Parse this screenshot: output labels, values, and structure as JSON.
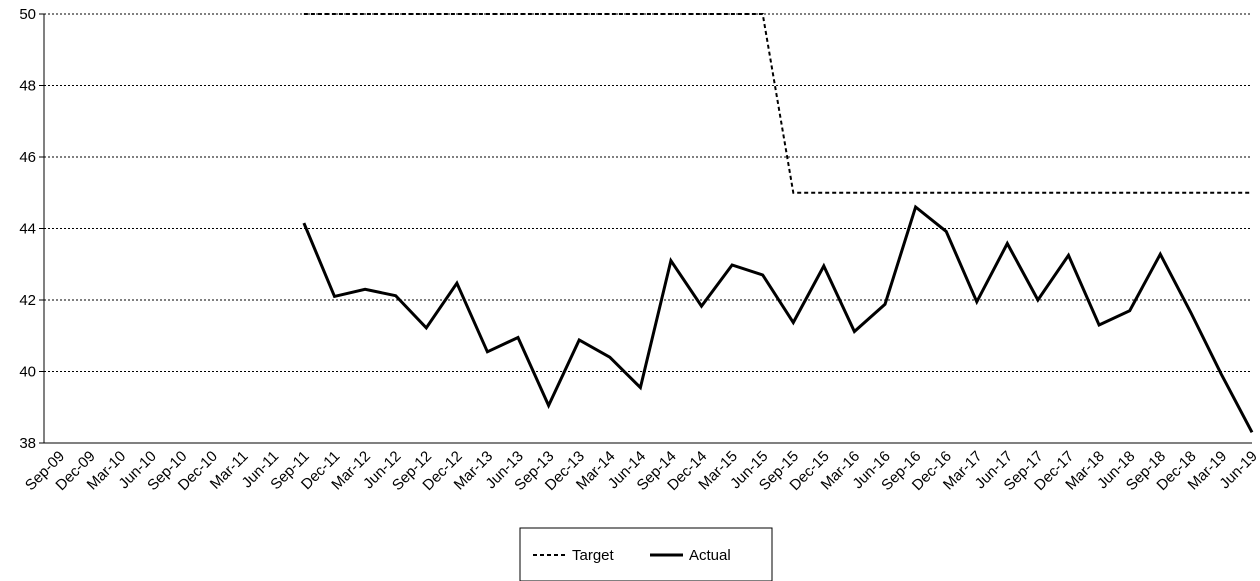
{
  "chart_data": {
    "type": "line",
    "categories": [
      "Sep-09",
      "Dec-09",
      "Mar-10",
      "Jun-10",
      "Sep-10",
      "Dec-10",
      "Mar-11",
      "Jun-11",
      "Sep-11",
      "Dec-11",
      "Mar-12",
      "Jun-12",
      "Sep-12",
      "Dec-12",
      "Mar-13",
      "Jun-13",
      "Sep-13",
      "Dec-13",
      "Mar-14",
      "Jun-14",
      "Sep-14",
      "Dec-14",
      "Mar-15",
      "Jun-15",
      "Sep-15",
      "Dec-15",
      "Mar-16",
      "Jun-16",
      "Sep-16",
      "Dec-16",
      "Mar-17",
      "Jun-17",
      "Sep-17",
      "Dec-17",
      "Mar-18",
      "Jun-18",
      "Sep-18",
      "Dec-18",
      "Mar-19",
      "Jun-19"
    ],
    "series": [
      {
        "name": "Target",
        "style": "dashed",
        "color": "#000000",
        "values": [
          null,
          null,
          null,
          null,
          null,
          null,
          null,
          null,
          50,
          50,
          50,
          50,
          50,
          50,
          50,
          50,
          50,
          50,
          50,
          50,
          50,
          50,
          50,
          50,
          45,
          45,
          45,
          45,
          45,
          45,
          45,
          45,
          45,
          45,
          45,
          45,
          45,
          45,
          45,
          45
        ]
      },
      {
        "name": "Actual",
        "style": "solid",
        "color": "#000000",
        "values": [
          null,
          null,
          null,
          null,
          null,
          null,
          null,
          null,
          44.15,
          42.1,
          42.3,
          42.12,
          41.22,
          42.47,
          40.55,
          40.95,
          39.05,
          40.88,
          40.4,
          39.55,
          43.1,
          41.83,
          42.98,
          42.7,
          41.37,
          42.95,
          41.12,
          41.88,
          44.6,
          43.92,
          41.95,
          43.58,
          42,
          43.25,
          41.3,
          41.7,
          43.28,
          41.65,
          39.92,
          38.3
        ]
      }
    ],
    "ylim": [
      38,
      50
    ],
    "yticks": [
      38,
      40,
      42,
      44,
      46,
      48,
      50
    ],
    "grid": "horizontal dotted",
    "legend": "bottom-center",
    "title": "",
    "xlabel": "",
    "ylabel": ""
  }
}
